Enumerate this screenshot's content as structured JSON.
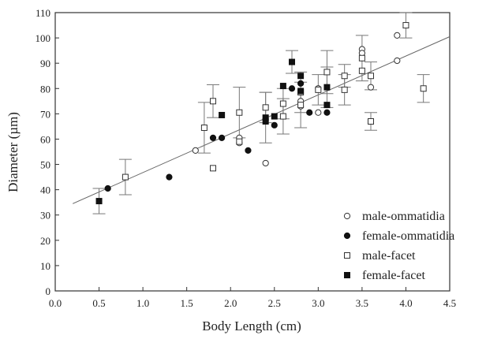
{
  "chart_data": {
    "type": "scatter",
    "title": "",
    "xlabel": "Body Length (cm)",
    "ylabel": "Diameter (µm)",
    "xlim": [
      0.0,
      4.5
    ],
    "ylim": [
      0,
      110
    ],
    "xticks": [
      "0.0",
      "0.5",
      "1.0",
      "1.5",
      "2.0",
      "2.5",
      "3.0",
      "3.5",
      "4.0",
      "4.5"
    ],
    "yticks": [
      "0",
      "10",
      "20",
      "30",
      "40",
      "50",
      "60",
      "70",
      "80",
      "90",
      "100",
      "110"
    ],
    "grid": false,
    "legend_position": "bottom-right",
    "series": [
      {
        "name": "male-ommatidia",
        "marker": "open-circle",
        "points": [
          [
            1.6,
            55.5
          ],
          [
            2.1,
            60.5
          ],
          [
            2.1,
            58.5
          ],
          [
            2.4,
            50.5
          ],
          [
            2.8,
            75
          ],
          [
            2.8,
            73
          ],
          [
            3.0,
            70.5
          ],
          [
            3.0,
            80
          ],
          [
            3.5,
            95.5
          ],
          [
            3.5,
            94
          ],
          [
            3.6,
            80.5
          ],
          [
            3.9,
            101
          ],
          [
            3.9,
            91
          ]
        ]
      },
      {
        "name": "female-ommatidia",
        "marker": "filled-circle",
        "points": [
          [
            0.6,
            40.5
          ],
          [
            1.3,
            45
          ],
          [
            1.8,
            60.5
          ],
          [
            1.9,
            60.5
          ],
          [
            2.2,
            55.5
          ],
          [
            2.5,
            65.5
          ],
          [
            2.7,
            80
          ],
          [
            2.8,
            82
          ],
          [
            2.9,
            70.5
          ],
          [
            3.1,
            70.5
          ]
        ]
      },
      {
        "name": "male-facet",
        "marker": "open-square",
        "points": [
          {
            "x": 0.8,
            "y": 45,
            "err": 7
          },
          {
            "x": 1.7,
            "y": 64.5,
            "err": 10
          },
          {
            "x": 1.8,
            "y": 75,
            "err": 6.5
          },
          {
            "x": 1.8,
            "y": 48.5,
            "err": 0
          },
          {
            "x": 2.1,
            "y": 70.5,
            "err": 10
          },
          {
            "x": 2.1,
            "y": 59,
            "err": 0
          },
          {
            "x": 2.4,
            "y": 72.5,
            "err": 6
          },
          {
            "x": 2.6,
            "y": 74,
            "err": 6
          },
          {
            "x": 2.6,
            "y": 69,
            "err": 7
          },
          {
            "x": 2.8,
            "y": 78.5,
            "err": 8
          },
          {
            "x": 2.8,
            "y": 73.5,
            "err": 9
          },
          {
            "x": 3.0,
            "y": 79.5,
            "err": 6
          },
          {
            "x": 3.1,
            "y": 86.5,
            "err": 8.5
          },
          {
            "x": 3.3,
            "y": 85,
            "err": 4.5
          },
          {
            "x": 3.3,
            "y": 79.5,
            "err": 6
          },
          {
            "x": 3.5,
            "y": 92,
            "err": 9
          },
          {
            "x": 3.5,
            "y": 87,
            "err": 0
          },
          {
            "x": 3.6,
            "y": 85,
            "err": 5.5
          },
          {
            "x": 3.6,
            "y": 67,
            "err": 3.5
          },
          {
            "x": 4.0,
            "y": 105,
            "err": 5
          },
          {
            "x": 4.2,
            "y": 80,
            "err": 5.5
          }
        ]
      },
      {
        "name": "female-facet",
        "marker": "filled-square",
        "points": [
          {
            "x": 0.5,
            "y": 35.5,
            "err": 5
          },
          {
            "x": 1.9,
            "y": 69.5,
            "err": 0
          },
          {
            "x": 2.4,
            "y": 68.5,
            "err": 10
          },
          {
            "x": 2.4,
            "y": 67,
            "err": 0
          },
          {
            "x": 2.5,
            "y": 69,
            "err": 0
          },
          {
            "x": 2.6,
            "y": 81,
            "err": 0
          },
          {
            "x": 2.7,
            "y": 90.5,
            "err": 4.5
          },
          {
            "x": 2.8,
            "y": 85,
            "err": 0
          },
          {
            "x": 2.8,
            "y": 79,
            "err": 0
          },
          {
            "x": 3.1,
            "y": 80.5,
            "err": 8
          },
          {
            "x": 3.1,
            "y": 73.5,
            "err": 0
          }
        ]
      }
    ],
    "fit_line": {
      "x": [
        0.2,
        4.5
      ],
      "y": [
        34.5,
        100.5
      ]
    }
  }
}
